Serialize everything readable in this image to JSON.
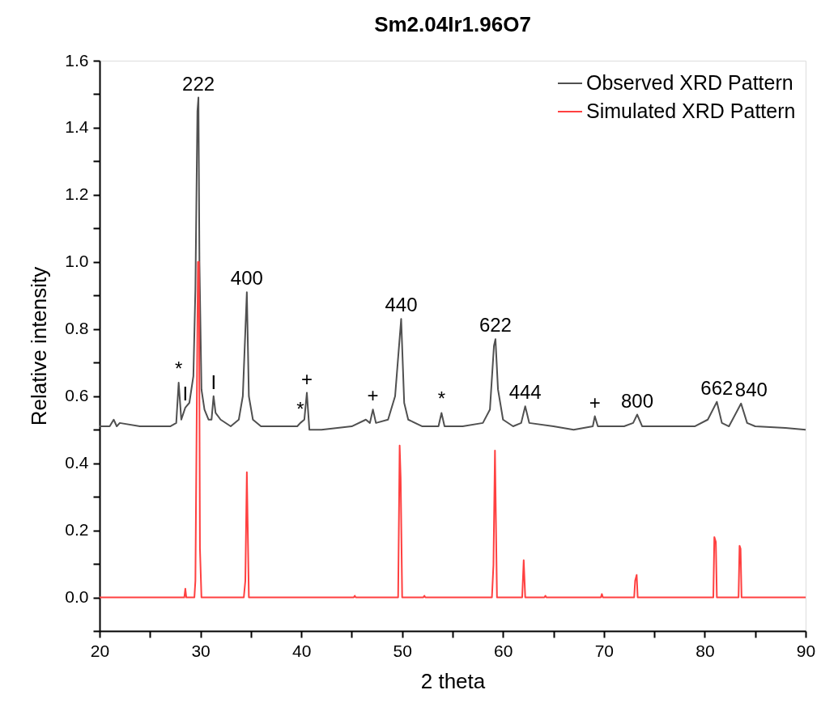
{
  "chart_data": {
    "type": "line",
    "title": "Sm2.04Ir1.96O7",
    "xlabel": "2 theta",
    "ylabel": "Relative intensity",
    "xlim": [
      20,
      90
    ],
    "xticks": [
      20,
      {
        "value": 25,
        "label": null
      },
      30,
      {
        "value": 35,
        "label": null
      },
      40,
      {
        "value": 45,
        "label": null
      },
      50,
      {
        "value": 55,
        "label": null
      },
      60,
      {
        "value": 65,
        "label": null
      },
      70,
      {
        "value": 75,
        "label": null
      },
      80,
      {
        "value": 85,
        "label": null
      },
      90
    ],
    "ylim": [
      -0.1,
      1.6
    ],
    "yticks": [
      {
        "value": -0.1,
        "label": null
      },
      {
        "value": 0,
        "label": "0.0"
      },
      {
        "value": 0.1,
        "label": null
      },
      0.2,
      {
        "value": 0.3,
        "label": null
      },
      0.4,
      {
        "value": 0.5,
        "label": null
      },
      0.6,
      {
        "value": 0.7,
        "label": null
      },
      0.8,
      {
        "value": 0.9,
        "label": null
      },
      {
        "value": 1.0,
        "label": "1.0"
      },
      {
        "value": 1.1,
        "label": null
      },
      1.2,
      {
        "value": 1.3,
        "label": null
      },
      1.4,
      {
        "value": 1.5,
        "label": null
      },
      1.6
    ],
    "grid": false,
    "legend": "top right",
    "marker": "none",
    "line_style": "solid",
    "series": [
      {
        "name": "Observed XRD Pattern",
        "color": "#505050",
        "x": [
          20,
          21.0,
          21.4,
          21.7,
          22,
          24,
          27,
          27.6,
          27.84,
          28.1,
          28.5,
          28.9,
          29.3,
          29.5,
          29.7,
          29.8,
          29.9,
          30.1,
          30.4,
          30.8,
          31.1,
          31.3,
          31.5,
          32,
          33,
          33.8,
          34.2,
          34.6,
          34.8,
          35.2,
          36,
          39.6,
          39.9,
          40.3,
          40.55,
          40.8,
          42,
          45,
          46.4,
          46.8,
          47.1,
          47.4,
          48.6,
          49.3,
          49.9,
          50.2,
          50.6,
          52,
          53.6,
          53.9,
          54.2,
          56,
          58,
          58.7,
          59.1,
          59.25,
          59.5,
          60,
          61,
          61.8,
          62.2,
          62.6,
          65,
          67,
          68.9,
          69.1,
          69.4,
          72,
          72.9,
          73.3,
          73.8,
          76,
          79,
          80.3,
          81.2,
          81.7,
          82.4,
          83.6,
          84.2,
          85,
          88,
          90
        ],
        "values": [
          0.51,
          0.51,
          0.53,
          0.51,
          0.52,
          0.51,
          0.51,
          0.52,
          0.64,
          0.53,
          0.566,
          0.58,
          0.66,
          0.92,
          1.45,
          1.49,
          1.0,
          0.62,
          0.56,
          0.53,
          0.53,
          0.6,
          0.55,
          0.53,
          0.51,
          0.53,
          0.6,
          0.91,
          0.6,
          0.53,
          0.51,
          0.51,
          0.52,
          0.53,
          0.61,
          0.5,
          0.5,
          0.51,
          0.53,
          0.52,
          0.56,
          0.52,
          0.53,
          0.6,
          0.83,
          0.58,
          0.53,
          0.51,
          0.51,
          0.55,
          0.51,
          0.51,
          0.52,
          0.56,
          0.75,
          0.77,
          0.62,
          0.53,
          0.51,
          0.52,
          0.57,
          0.52,
          0.51,
          0.5,
          0.51,
          0.54,
          0.51,
          0.51,
          0.52,
          0.545,
          0.51,
          0.51,
          0.51,
          0.53,
          0.583,
          0.52,
          0.51,
          0.578,
          0.52,
          0.51,
          0.505,
          0.5
        ]
      },
      {
        "name": "Simulated XRD Pattern",
        "color": "#ff4040",
        "x": [
          20,
          28.4,
          28.5,
          28.6,
          29.4,
          29.5,
          29.75,
          29.85,
          29.95,
          30.1,
          34.3,
          34.45,
          34.6,
          34.8,
          45.2,
          45.3,
          45.4,
          49.6,
          49.75,
          49.85,
          50.0,
          52.1,
          52.2,
          52.3,
          58.9,
          59.05,
          59.2,
          59.4,
          61.9,
          62.05,
          62.2,
          64.1,
          64.2,
          64.3,
          69.7,
          69.8,
          69.9,
          73.0,
          73.1,
          73.25,
          73.35,
          80.85,
          80.95,
          81.1,
          81.2,
          83.35,
          83.45,
          83.55,
          83.65,
          90
        ],
        "values": [
          0,
          0,
          0.026,
          0,
          0,
          0.05,
          1.0,
          1.0,
          0.147,
          0,
          0,
          0.05,
          0.373,
          0,
          0,
          0.005,
          0,
          0,
          0.453,
          0.357,
          0,
          0,
          0.005,
          0,
          0,
          0.097,
          0.438,
          0,
          0,
          0.111,
          0,
          0,
          0.005,
          0,
          0,
          0.01,
          0,
          0,
          0.05,
          0.067,
          0,
          0,
          0.18,
          0.165,
          0,
          0,
          0.154,
          0.145,
          0,
          0
        ]
      }
    ],
    "annotations": [
      {
        "text": "222",
        "x": 29.8,
        "y": 1.49
      },
      {
        "text": "400",
        "x": 34.6,
        "y": 0.91
      },
      {
        "text": "440",
        "x": 49.9,
        "y": 0.83
      },
      {
        "text": "622",
        "x": 59.25,
        "y": 0.77
      },
      {
        "text": "444",
        "x": 62.2,
        "y": 0.57
      },
      {
        "text": "800",
        "x": 73.3,
        "y": 0.545
      },
      {
        "text": "662",
        "x": 81.2,
        "y": 0.583
      },
      {
        "text": "840",
        "x": 83.6,
        "y": 0.578
      },
      {
        "text": "*",
        "x": 27.84,
        "y": 0.64
      },
      {
        "text": "I",
        "x": 28.5,
        "y": 0.566
      },
      {
        "text": "I",
        "x": 31.3,
        "y": 0.6
      },
      {
        "text": "*",
        "x": 39.9,
        "y": 0.52
      },
      {
        "text": "+",
        "x": 40.55,
        "y": 0.61
      },
      {
        "text": "+",
        "x": 47.1,
        "y": 0.56
      },
      {
        "text": "*",
        "x": 53.9,
        "y": 0.55
      },
      {
        "text": "+",
        "x": 69.1,
        "y": 0.54
      }
    ]
  }
}
